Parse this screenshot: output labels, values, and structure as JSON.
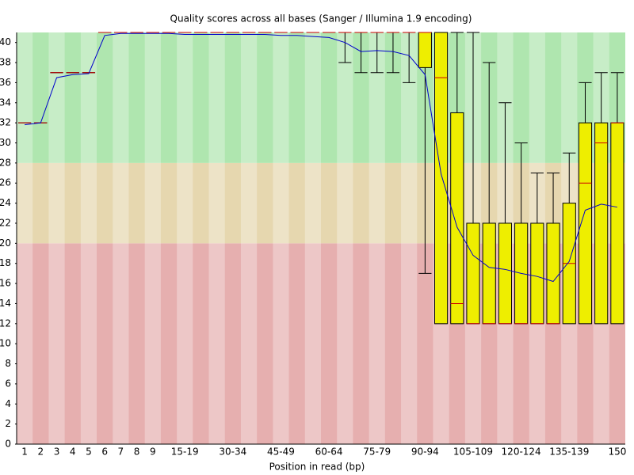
{
  "chart_data": {
    "type": "box",
    "title": "Quality scores across all bases (Sanger / Illumina 1.9 encoding)",
    "x_label": "Position in read (bp)",
    "categories": [
      "1",
      "2",
      "3",
      "4",
      "5",
      "6",
      "7",
      "8",
      "9",
      null,
      "15-19",
      null,
      null,
      "30-34",
      null,
      null,
      "45-49",
      null,
      null,
      "60-64",
      null,
      null,
      "75-79",
      null,
      null,
      "90-94",
      null,
      null,
      "105-109",
      null,
      null,
      "120-124",
      null,
      null,
      "135-139",
      null,
      null,
      "150"
    ],
    "low": [
      32,
      32,
      37,
      37,
      37,
      41,
      41,
      41,
      41,
      41,
      41,
      41,
      41,
      41,
      41,
      41,
      41,
      41,
      41,
      41,
      38,
      37,
      37,
      37,
      36,
      17,
      12,
      12,
      12,
      12,
      12,
      12,
      12,
      12,
      12,
      12,
      12,
      12
    ],
    "q1": [
      32,
      32,
      37,
      37,
      37,
      41,
      41,
      41,
      41,
      41,
      41,
      41,
      41,
      41,
      41,
      41,
      41,
      41,
      41,
      41,
      41,
      41,
      41,
      41,
      41,
      37.5,
      12,
      12,
      12,
      12,
      12,
      12,
      12,
      12,
      12,
      12,
      12,
      12
    ],
    "median": [
      32,
      32,
      37,
      37,
      37,
      41,
      41,
      41,
      41,
      41,
      41,
      41,
      41,
      41,
      41,
      41,
      41,
      41,
      41,
      41,
      41,
      41,
      41,
      41,
      41,
      41,
      36.5,
      14,
      12,
      12,
      12,
      12,
      12,
      12,
      18,
      26,
      30,
      32
    ],
    "q3": [
      32,
      32,
      37,
      37,
      37,
      41,
      41,
      41,
      41,
      41,
      41,
      41,
      41,
      41,
      41,
      41,
      41,
      41,
      41,
      41,
      41,
      41,
      41,
      41,
      41,
      41,
      41,
      33,
      22,
      22,
      22,
      22,
      22,
      22,
      24,
      32,
      32,
      32
    ],
    "high": [
      32,
      32,
      37,
      37,
      37,
      41,
      41,
      41,
      41,
      41,
      41,
      41,
      41,
      41,
      41,
      41,
      41,
      41,
      41,
      41,
      41,
      41,
      41,
      41,
      41,
      41,
      41,
      41,
      41,
      38,
      34,
      30,
      27,
      27,
      29,
      36,
      37,
      37
    ],
    "mean": [
      31.8,
      32.0,
      36.5,
      36.8,
      36.9,
      40.7,
      40.9,
      40.9,
      40.9,
      40.9,
      40.8,
      40.8,
      40.8,
      40.8,
      40.8,
      40.8,
      40.7,
      40.7,
      40.6,
      40.5,
      40.0,
      39.1,
      39.2,
      39.1,
      38.7,
      36.8,
      26.9,
      21.6,
      18.8,
      17.6,
      17.4,
      17.0,
      16.7,
      16.2,
      18.2,
      23.3,
      23.9,
      23.6
    ],
    "box_color": "#eeee00",
    "median_color": "#cc0000",
    "mean_color": "#0000cc",
    "zones": [
      {
        "from": 0,
        "to": 20,
        "color": "#e6afaf"
      },
      {
        "from": 20,
        "to": 28,
        "color": "#e6d7af"
      },
      {
        "from": 28,
        "to": 41,
        "color": "#afe6af"
      }
    ],
    "ylim": [
      0,
      41
    ],
    "yticks": [
      0,
      2,
      4,
      6,
      8,
      10,
      12,
      14,
      16,
      18,
      20,
      22,
      24,
      26,
      28,
      30,
      32,
      34,
      36,
      38,
      40
    ]
  }
}
